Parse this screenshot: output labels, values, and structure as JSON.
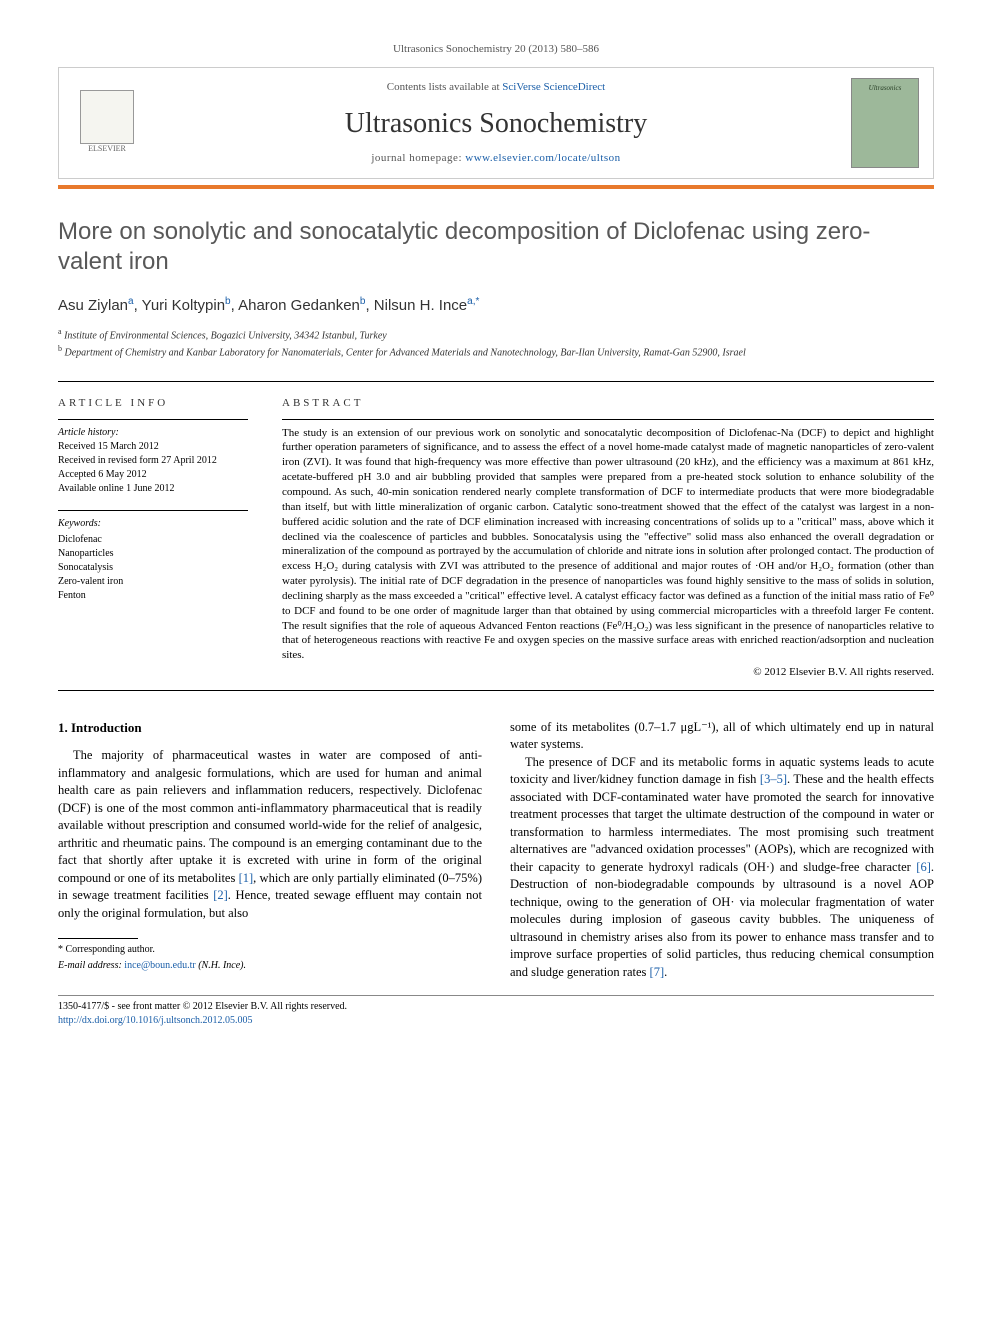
{
  "citation": "Ultrasonics Sonochemistry 20 (2013) 580–586",
  "header": {
    "contents_prefix": "Contents lists available at ",
    "contents_link": "SciVerse ScienceDirect",
    "journal": "Ultrasonics Sonochemistry",
    "homepage_prefix": "journal homepage: ",
    "homepage_url": "www.elsevier.com/locate/ultson",
    "publisher_label": "ELSEVIER",
    "cover_text": "Ultrasonics"
  },
  "title": "More on sonolytic and sonocatalytic decomposition of Diclofenac using zero-valent iron",
  "authors_html": "Asu Ziylan<sup>a</sup>, Yuri Koltypin<sup>b</sup>, Aharon Gedanken<sup>b</sup>, Nilsun H. Ince<sup>a,*</sup>",
  "affiliations": {
    "a": "Institute of Environmental Sciences, Bogazici University, 34342 Istanbul, Turkey",
    "b": "Department of Chemistry and Kanbar Laboratory for Nanomaterials, Center for Advanced Materials and Nanotechnology, Bar-Ilan University, Ramat-Gan 52900, Israel"
  },
  "info_heading": "ARTICLE INFO",
  "abstract_heading": "ABSTRACT",
  "history": {
    "label": "Article history:",
    "received": "Received 15 March 2012",
    "revised": "Received in revised form 27 April 2012",
    "accepted": "Accepted 6 May 2012",
    "online": "Available online 1 June 2012"
  },
  "keywords": {
    "label": "Keywords:",
    "items": [
      "Diclofenac",
      "Nanoparticles",
      "Sonocatalysis",
      "Zero-valent iron",
      "Fenton"
    ]
  },
  "abstract": "The study is an extension of our previous work on sonolytic and sonocatalytic decomposition of Diclofenac-Na (DCF) to depict and highlight further operation parameters of significance, and to assess the effect of a novel home-made catalyst made of magnetic nanoparticles of zero-valent iron (ZVI). It was found that high-frequency was more effective than power ultrasound (20 kHz), and the efficiency was a maximum at 861 kHz, acetate-buffered pH 3.0 and air bubbling provided that samples were prepared from a pre-heated stock solution to enhance solubility of the compound. As such, 40-min sonication rendered nearly complete transformation of DCF to intermediate products that were more biodegradable than itself, but with little mineralization of organic carbon. Catalytic sono-treatment showed that the effect of the catalyst was largest in a non-buffered acidic solution and the rate of DCF elimination increased with increasing concentrations of solids up to a \"critical\" mass, above which it declined via the coalescence of particles and bubbles. Sonocatalysis using the \"effective\" solid mass also enhanced the overall degradation or mineralization of the compound as portrayed by the accumulation of chloride and nitrate ions in solution after prolonged contact. The production of excess H₂O₂ during catalysis with ZVI was attributed to the presence of additional and major routes of ·OH and/or H₂O₂ formation (other than water pyrolysis). The initial rate of DCF degradation in the presence of nanoparticles was found highly sensitive to the mass of solids in solution, declining sharply as the mass exceeded a \"critical\" effective level. A catalyst efficacy factor was defined as a function of the initial mass ratio of Fe⁰ to DCF and found to be one order of magnitude larger than that obtained by using commercial microparticles with a threefold larger Fe content. The result signifies that the role of aqueous Advanced Fenton reactions (Fe⁰/H₂O₂) was less significant in the presence of nanoparticles relative to that of heterogeneous reactions with reactive Fe and oxygen species on the massive surface areas with enriched reaction/adsorption and nucleation sites.",
  "copyright": "© 2012 Elsevier B.V. All rights reserved.",
  "body": {
    "heading": "1. Introduction",
    "left_p1": "The majority of pharmaceutical wastes in water are composed of anti-inflammatory and analgesic formulations, which are used for human and animal health care as pain relievers and inflammation reducers, respectively. Diclofenac (DCF) is one of the most common anti-inflammatory pharmaceutical that is readily available without prescription and consumed world-wide for the relief of analgesic, arthritic and rheumatic pains. The compound is an emerging contaminant due to the fact that shortly after uptake it is excreted with urine in form of the original compound or one of its metabolites ",
    "left_ref1": "[1]",
    "left_p1b": ", which are only partially eliminated (0–75%) in sewage treatment facilities ",
    "left_ref2": "[2]",
    "left_p1c": ". Hence, treated sewage effluent may contain not only the original formulation, but also",
    "right_p1": "some of its metabolites (0.7–1.7 μgL⁻¹), all of which ultimately end up in natural water systems.",
    "right_p2a": "The presence of DCF and its metabolic forms in aquatic systems leads to acute toxicity and liver/kidney function damage in fish ",
    "right_ref1": "[3–5]",
    "right_p2b": ". These and the health effects associated with DCF-contaminated water have promoted the search for innovative treatment processes that target the ultimate destruction of the compound in water or transformation to harmless intermediates. The most promising such treatment alternatives are \"advanced oxidation processes\" (AOPs), which are recognized with their capacity to generate hydroxyl radicals (OH·) and sludge-free character ",
    "right_ref2": "[6]",
    "right_p2c": ". Destruction of non-biodegradable compounds by ultrasound is a novel AOP technique, owing to the generation of OH· via molecular fragmentation of water molecules during implosion of gaseous cavity bubbles. The uniqueness of ultrasound in chemistry arises also from its power to enhance mass transfer and to improve surface properties of solid particles, thus reducing chemical consumption and sludge generation rates ",
    "right_ref3": "[7]",
    "right_p2d": "."
  },
  "footer": {
    "corr": "* Corresponding author.",
    "email_label": "E-mail address: ",
    "email": "ince@boun.edu.tr",
    "email_suffix": " (N.H. Ince).",
    "issn_line": "1350-4177/$ - see front matter © 2012 Elsevier B.V. All rights reserved.",
    "doi": "http://dx.doi.org/10.1016/j.ultsonch.2012.05.005"
  },
  "colors": {
    "orange_bar": "#e8792c",
    "link": "#1a5ea8",
    "title_gray": "#585858",
    "cover_bg": "#9db89a"
  }
}
